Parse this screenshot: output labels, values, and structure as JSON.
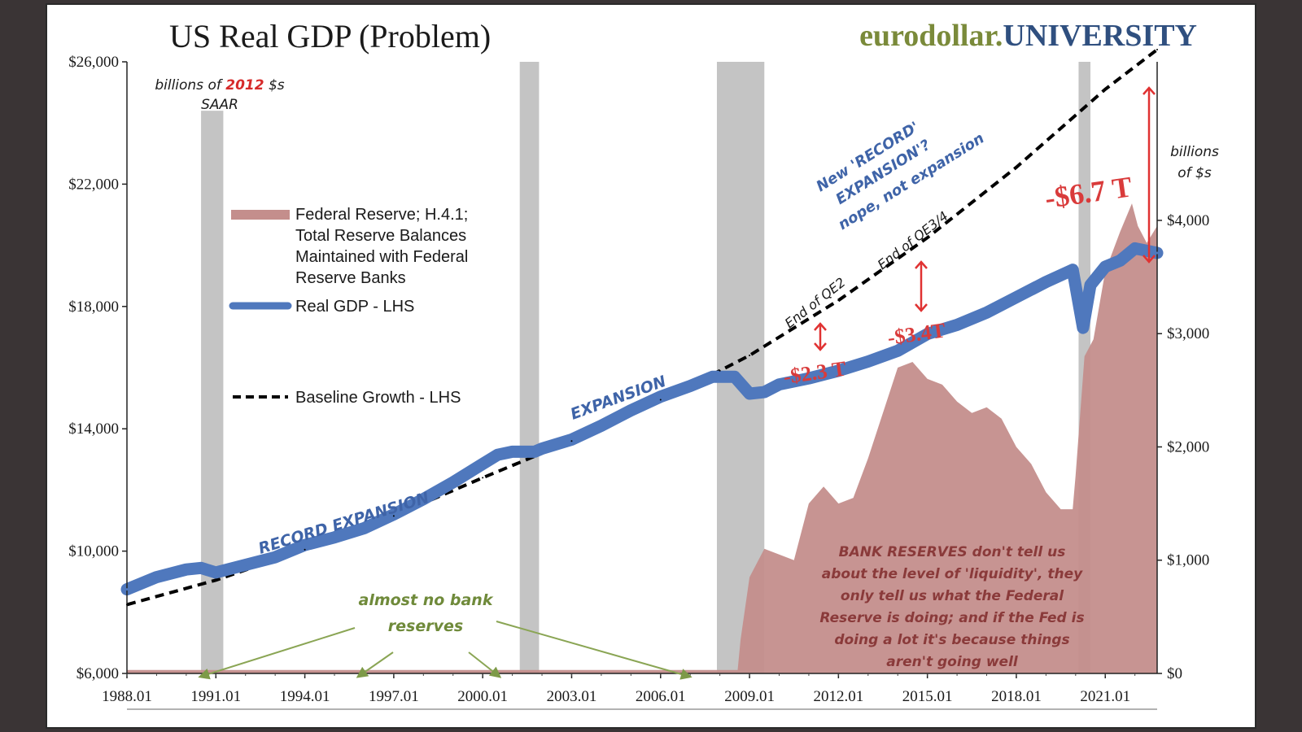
{
  "chart_data": {
    "type": "line",
    "title": "US Real GDP (Problem)",
    "brand": {
      "part1": "eurodollar.",
      "part2": "UNIVERSITY",
      "color1": "#7a8a3a",
      "color2": "#2f4f7f"
    },
    "left_axis": {
      "range": [
        6000,
        26000
      ],
      "ticks": [
        6000,
        10000,
        14000,
        18000,
        22000,
        26000
      ],
      "tick_labels": [
        "$6,000",
        "$10,000",
        "$14,000",
        "$18,000",
        "$22,000",
        "$26,000"
      ],
      "unit_line1_pre": "billions of ",
      "unit_line1_year": "2012",
      "unit_line1_post": " $s",
      "unit_line2": "SAAR"
    },
    "right_axis": {
      "range": [
        0,
        5400
      ],
      "ticks": [
        0,
        1000,
        2000,
        3000,
        4000
      ],
      "tick_labels": [
        "$0",
        "$1,000",
        "$2,000",
        "$3,000",
        "$4,000"
      ],
      "unit_line1": "billions",
      "unit_line2": "of $s"
    },
    "x_axis": {
      "range": [
        1988.0,
        2022.75
      ],
      "ticks": [
        1988,
        1991,
        1994,
        1997,
        2000,
        2003,
        2006,
        2009,
        2012,
        2015,
        2018,
        2021
      ],
      "tick_labels": [
        "1988.01",
        "1991.01",
        "1994.01",
        "1997.01",
        "2000.01",
        "2003.01",
        "2006.01",
        "2009.01",
        "2012.01",
        "2015.01",
        "2018.01",
        "2021.01"
      ]
    },
    "recessions": [
      [
        1990.5,
        1991.25
      ],
      [
        2001.25,
        2001.9
      ],
      [
        2007.9,
        2009.5
      ],
      [
        2020.1,
        2020.5
      ]
    ],
    "legend": {
      "reserves": [
        "Federal Reserve; H.4.1;",
        "Total Reserve Balances",
        "Maintained with Federal",
        "Reserve Banks"
      ],
      "gdp": "Real GDP - LHS",
      "baseline": "Baseline Growth - LHS"
    },
    "series": [
      {
        "name": "Real GDP - LHS",
        "color": "#4f78bd",
        "axis": "left",
        "x": [
          1988.0,
          1989.0,
          1990.0,
          1990.5,
          1991.0,
          1992.0,
          1993.0,
          1994.0,
          1995.0,
          1996.0,
          1997.0,
          1998.0,
          1999.0,
          2000.0,
          2000.5,
          2001.0,
          2001.75,
          2002.0,
          2003.0,
          2004.0,
          2005.0,
          2006.0,
          2007.0,
          2007.75,
          2008.5,
          2009.0,
          2009.5,
          2010.0,
          2011.0,
          2012.0,
          2013.0,
          2014.0,
          2015.0,
          2016.0,
          2017.0,
          2018.0,
          2019.0,
          2019.9,
          2020.25,
          2020.5,
          2020.75,
          2021.0,
          2021.5,
          2022.0,
          2022.25,
          2022.75
        ],
        "values": [
          8750,
          9150,
          9400,
          9450,
          9300,
          9550,
          9800,
          10200,
          10450,
          10750,
          11200,
          11700,
          12250,
          12850,
          13150,
          13250,
          13250,
          13350,
          13650,
          14100,
          14600,
          15050,
          15400,
          15700,
          15700,
          15150,
          15200,
          15450,
          15650,
          15900,
          16200,
          16550,
          17100,
          17400,
          17800,
          18300,
          18800,
          19200,
          17300,
          18700,
          19000,
          19300,
          19500,
          19900,
          19850,
          19750
        ]
      },
      {
        "name": "Baseline Growth - LHS",
        "color": "#000000",
        "axis": "left",
        "x": [
          1988.0,
          1991.0,
          1994.0,
          1997.0,
          2000.0,
          2003.0,
          2006.0,
          2008.0,
          2009.0,
          2012.0,
          2015.0,
          2018.0,
          2021.0,
          2022.75
        ],
        "values": [
          8250,
          9050,
          10050,
          11150,
          12400,
          13600,
          14950,
          15900,
          16400,
          18200,
          20250,
          22550,
          25100,
          26400
        ]
      },
      {
        "name": "Total Reserve Balances Maintained with Federal Reserve Banks",
        "color": "#c48e8c",
        "axis": "right",
        "x": [
          1988.0,
          2008.6,
          2008.7,
          2009.0,
          2009.5,
          2010.0,
          2010.5,
          2011.0,
          2011.5,
          2012.0,
          2012.5,
          2013.0,
          2013.5,
          2014.0,
          2014.5,
          2015.0,
          2015.5,
          2016.0,
          2016.5,
          2017.0,
          2017.5,
          2018.0,
          2018.5,
          2019.0,
          2019.5,
          2019.9,
          2020.0,
          2020.3,
          2020.6,
          2021.0,
          2021.5,
          2021.9,
          2022.1,
          2022.4,
          2022.75
        ],
        "values": [
          30,
          30,
          300,
          850,
          1100,
          1050,
          1000,
          1500,
          1650,
          1500,
          1550,
          1900,
          2300,
          2700,
          2750,
          2600,
          2550,
          2400,
          2300,
          2350,
          2250,
          2000,
          1850,
          1600,
          1450,
          1450,
          1750,
          2800,
          2950,
          3550,
          3900,
          4150,
          3950,
          3800,
          3950
        ]
      }
    ],
    "annotations": {
      "record_expansion": "RECORD EXPANSION",
      "expansion": "EXPANSION",
      "new_record_1": "New 'RECORD'",
      "new_record_2": "EXPANSION'?",
      "new_record_3": "nope, not expansion",
      "end_qe2": "End of QE2",
      "end_qe34": "End of QE3/4",
      "gap_2_3": "-$2.3 T",
      "gap_3_4": "-$3.4T",
      "gap_6_7": "-$6.7 T",
      "almost_1": "almost no bank",
      "almost_2": "reserves",
      "bank_reserves": [
        "BANK RESERVES don't tell us",
        "about the level of 'liquidity', they",
        "only tell us what the Federal",
        "Reserve is doing; and if the Fed is",
        "doing a lot it's because things",
        "aren't going well"
      ]
    }
  }
}
